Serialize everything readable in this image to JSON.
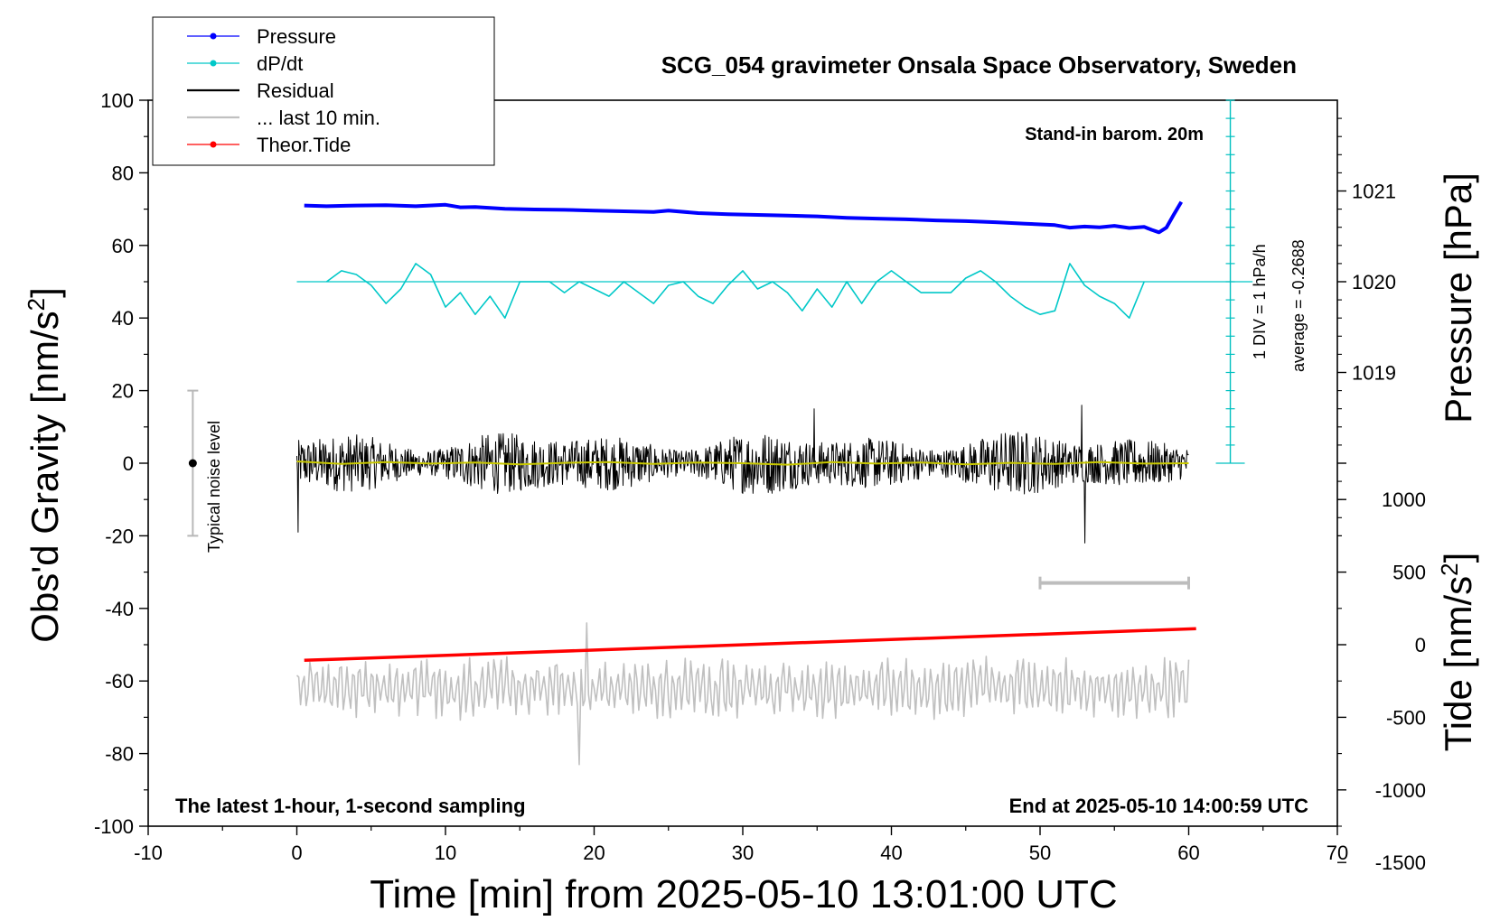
{
  "chart_data": {
    "type": "line",
    "title": "SCG_054 gravimeter Onsala Space Observatory, Sweden",
    "xlabel": "Time [min] from 2025-05-10 13:01:00 UTC",
    "ylabel": "Obs'd Gravity [nm/s",
    "ylabel_sup": "2",
    "ylabel_end": "]",
    "y2label": "Pressure [hPa]",
    "y3label": "Tide [nm/s",
    "y3label_sup": "2",
    "y3label_end": "]",
    "xlim": [
      -10,
      70
    ],
    "ylim": [
      -100,
      100
    ],
    "xticks": [
      -10,
      0,
      10,
      20,
      30,
      40,
      50,
      60,
      70
    ],
    "yticks": [
      -100,
      -80,
      -60,
      -40,
      -20,
      0,
      20,
      40,
      60,
      80,
      100
    ],
    "pressure_ticks": [
      1019,
      1020,
      1021
    ],
    "pressure_axis": {
      "ref_value": 1020,
      "ref_gravity": 50,
      "gravity_per_hpa": 25
    },
    "tide_ticks": [
      -1500,
      -1000,
      -500,
      0,
      500,
      1000
    ],
    "tide_axis": {
      "ref_value": 0,
      "ref_gravity": -50,
      "gravity_per_unit": 0.04
    },
    "legend": {
      "position": "top-left",
      "entries": [
        {
          "label": "Pressure",
          "color": "#0000ff",
          "style": "line-dot"
        },
        {
          "label": "dP/dt",
          "color": "#00c8c8",
          "style": "line-dot"
        },
        {
          "label": "Residual",
          "color": "#000000",
          "style": "line"
        },
        {
          "label": "... last 10 min.",
          "color": "#c0c0c0",
          "style": "line"
        },
        {
          "label": "Theor.Tide",
          "color": "#ff0000",
          "style": "line-dot"
        }
      ]
    },
    "annotations": {
      "barometer": "Stand-in barom. 20m",
      "div_label": "1 DIV = 1 hPa/h",
      "average_label": "average = -0.2688",
      "noise_label": "Typical noise level",
      "bottom_left": "The latest 1-hour, 1-second sampling",
      "bottom_right": "End at 2025-05-10 14:00:59 UTC"
    },
    "noise_bar": {
      "x": -7,
      "y": 0,
      "low": -20,
      "high": 20
    },
    "dpdt_scale": {
      "x": 62.8,
      "y_from": 0,
      "y_to": 100,
      "tick_step": 5,
      "baseline": 50
    },
    "last10_range": {
      "x_from": 50,
      "x_to": 60,
      "y": -33
    },
    "series": [
      {
        "name": "Pressure",
        "color": "#0000ff",
        "axis": "gravity",
        "x": [
          0.5,
          2,
          4,
          6,
          8,
          10,
          11,
          12,
          14,
          16,
          18,
          20,
          22,
          24,
          25,
          27,
          29,
          31,
          33,
          35,
          37,
          39,
          41,
          43,
          45,
          47,
          49,
          51,
          52,
          53,
          54,
          55,
          56,
          57,
          57.5,
          58,
          58.5,
          59,
          59.5
        ],
        "y": [
          71,
          70.8,
          71,
          71.1,
          70.8,
          71.2,
          70.5,
          70.6,
          70.1,
          69.9,
          69.8,
          69.6,
          69.4,
          69.2,
          69.6,
          68.9,
          68.6,
          68.4,
          68.2,
          68,
          67.6,
          67.4,
          67.2,
          66.9,
          66.7,
          66.4,
          66,
          65.6,
          64.9,
          65.2,
          65,
          65.4,
          64.8,
          65.1,
          64.3,
          63.6,
          64.9,
          68.5,
          72
        ]
      },
      {
        "name": "dP/dt",
        "color": "#00c8c8",
        "axis": "gravity",
        "x": [
          2,
          3,
          4,
          5,
          6,
          7,
          8,
          9,
          10,
          11,
          12,
          13,
          14,
          15,
          16,
          17,
          18,
          19,
          20,
          21,
          22,
          23,
          24,
          25,
          26,
          27,
          28,
          29,
          30,
          31,
          32,
          33,
          34,
          35,
          36,
          37,
          38,
          39,
          40,
          41,
          42,
          43,
          44,
          45,
          46,
          47,
          48,
          49,
          50,
          51,
          52,
          53,
          54,
          55,
          56,
          57
        ],
        "y": [
          50,
          53,
          52,
          49,
          44,
          48,
          55,
          52,
          43,
          47,
          41,
          46,
          40,
          50,
          50,
          50,
          47,
          50,
          48,
          46,
          50,
          47,
          44,
          49,
          50,
          46,
          44,
          49,
          53,
          48,
          50,
          47,
          42,
          48,
          43,
          50,
          44,
          50,
          53,
          50,
          47,
          47,
          47,
          51,
          53,
          50,
          46,
          43,
          41,
          42,
          55,
          49,
          46,
          44,
          40,
          50
        ]
      },
      {
        "name": "Residual",
        "color": "#000000",
        "axis": "gravity",
        "generator": "noise",
        "x_range": [
          0,
          60
        ],
        "center": 0,
        "amplitude": 8.5,
        "extremes": [
          {
            "x": 0.1,
            "y": -19
          },
          {
            "x": 34.8,
            "y": 15
          },
          {
            "x": 52.8,
            "y": 16
          },
          {
            "x": 53,
            "y": -22
          }
        ]
      },
      {
        "name": "Residual smoothed",
        "color": "#c8c800",
        "axis": "gravity",
        "x": [
          0,
          3,
          6,
          9,
          12,
          15,
          18,
          21,
          24,
          27,
          30,
          33,
          36,
          39,
          42,
          45,
          48,
          51,
          54,
          57,
          60
        ],
        "y": [
          0.5,
          -0.2,
          0.3,
          -0.1,
          0.2,
          -0.3,
          0.1,
          0.3,
          -0.2,
          0.2,
          0,
          -0.4,
          0.3,
          -0.1,
          0.2,
          -0.3,
          0.1,
          -0.2,
          0.3,
          -0.1,
          0
        ]
      },
      {
        "name": "... last 10 min.",
        "color": "#c0c0c0",
        "axis": "gravity",
        "generator": "oscillation",
        "x_range": [
          0,
          60
        ],
        "center": -62,
        "amplitude": 6.5,
        "extremes": [
          {
            "x": 19,
            "y": -83
          },
          {
            "x": 19.5,
            "y": -44
          }
        ]
      },
      {
        "name": "Theor.Tide",
        "color": "#ff0000",
        "axis": "gravity",
        "x": [
          0.5,
          60.5
        ],
        "y": [
          -54.3,
          -45.6
        ]
      }
    ]
  }
}
